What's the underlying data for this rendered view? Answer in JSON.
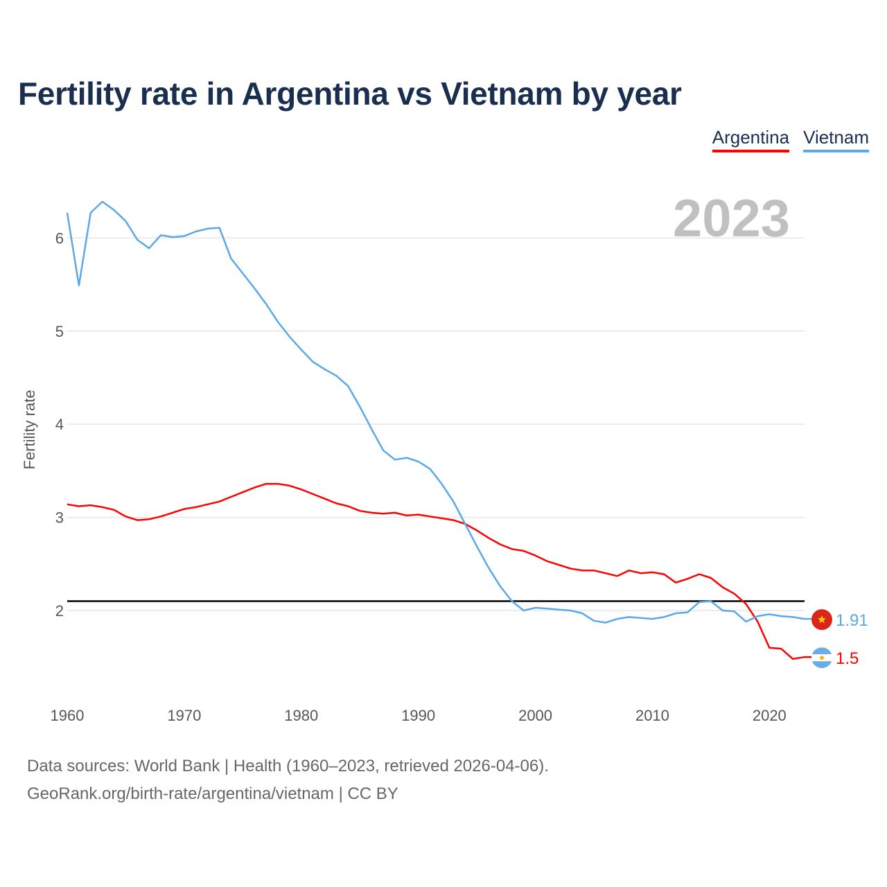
{
  "title": "Fertility rate in Argentina vs Vietnam by year",
  "legend": {
    "argentina": "Argentina",
    "vietnam": "Vietnam"
  },
  "footer": {
    "line1": "Data sources: World Bank | Health (1960–2023, retrieved 2026-04-06).",
    "line2": "GeoRank.org/birth-rate/argentina/vietnam | CC BY"
  },
  "colors": {
    "argentina": "#ff0000",
    "vietnam": "#5aa8e8",
    "grid": "#e6e6e6",
    "reference": "#000000"
  },
  "chart_data": {
    "type": "line",
    "year_label": "2023",
    "ylabel": "Fertility rate",
    "xlim": [
      1960,
      2023
    ],
    "ylim": [
      1.2,
      6.5
    ],
    "yticks": [
      2,
      3,
      4,
      5,
      6
    ],
    "xticks": [
      1960,
      1970,
      1980,
      1990,
      2000,
      2010,
      2020
    ],
    "reference_line": 2.1,
    "x": [
      1960,
      1961,
      1962,
      1963,
      1964,
      1965,
      1966,
      1967,
      1968,
      1969,
      1970,
      1971,
      1972,
      1973,
      1974,
      1975,
      1976,
      1977,
      1978,
      1979,
      1980,
      1981,
      1982,
      1983,
      1984,
      1985,
      1986,
      1987,
      1988,
      1989,
      1990,
      1991,
      1992,
      1993,
      1994,
      1995,
      1996,
      1997,
      1998,
      1999,
      2000,
      2001,
      2002,
      2003,
      2004,
      2005,
      2006,
      2007,
      2008,
      2009,
      2010,
      2011,
      2012,
      2013,
      2014,
      2015,
      2016,
      2017,
      2018,
      2019,
      2020,
      2021,
      2022,
      2023
    ],
    "series": [
      {
        "name": "Argentina",
        "color": "#ff0000",
        "end_label": "1.5",
        "flag": "argentina-flag",
        "values": [
          3.14,
          3.12,
          3.13,
          3.11,
          3.08,
          3.01,
          2.97,
          2.98,
          3.01,
          3.05,
          3.09,
          3.11,
          3.14,
          3.17,
          3.22,
          3.27,
          3.32,
          3.36,
          3.36,
          3.34,
          3.3,
          3.25,
          3.2,
          3.15,
          3.12,
          3.07,
          3.05,
          3.04,
          3.05,
          3.02,
          3.03,
          3.01,
          2.99,
          2.97,
          2.93,
          2.86,
          2.78,
          2.71,
          2.66,
          2.64,
          2.59,
          2.53,
          2.49,
          2.45,
          2.43,
          2.43,
          2.4,
          2.37,
          2.43,
          2.4,
          2.41,
          2.39,
          2.3,
          2.34,
          2.39,
          2.35,
          2.25,
          2.18,
          2.07,
          1.88,
          1.6,
          1.59,
          1.48,
          1.5
        ]
      },
      {
        "name": "Vietnam",
        "color": "#5aa8e8",
        "end_label": "1.91",
        "flag": "vietnam-flag",
        "values": [
          6.27,
          5.49,
          6.27,
          6.39,
          6.3,
          6.18,
          5.98,
          5.89,
          6.03,
          6.01,
          6.02,
          6.07,
          6.1,
          6.11,
          5.78,
          5.62,
          5.46,
          5.29,
          5.1,
          4.94,
          4.8,
          4.67,
          4.59,
          4.52,
          4.41,
          4.19,
          3.95,
          3.72,
          3.62,
          3.64,
          3.6,
          3.52,
          3.36,
          3.17,
          2.93,
          2.69,
          2.46,
          2.26,
          2.1,
          2.0,
          2.03,
          2.02,
          2.01,
          2.0,
          1.97,
          1.89,
          1.87,
          1.91,
          1.93,
          1.92,
          1.91,
          1.93,
          1.97,
          1.98,
          2.09,
          2.1,
          2.0,
          1.99,
          1.88,
          1.94,
          1.96,
          1.94,
          1.93,
          1.91
        ]
      }
    ]
  }
}
